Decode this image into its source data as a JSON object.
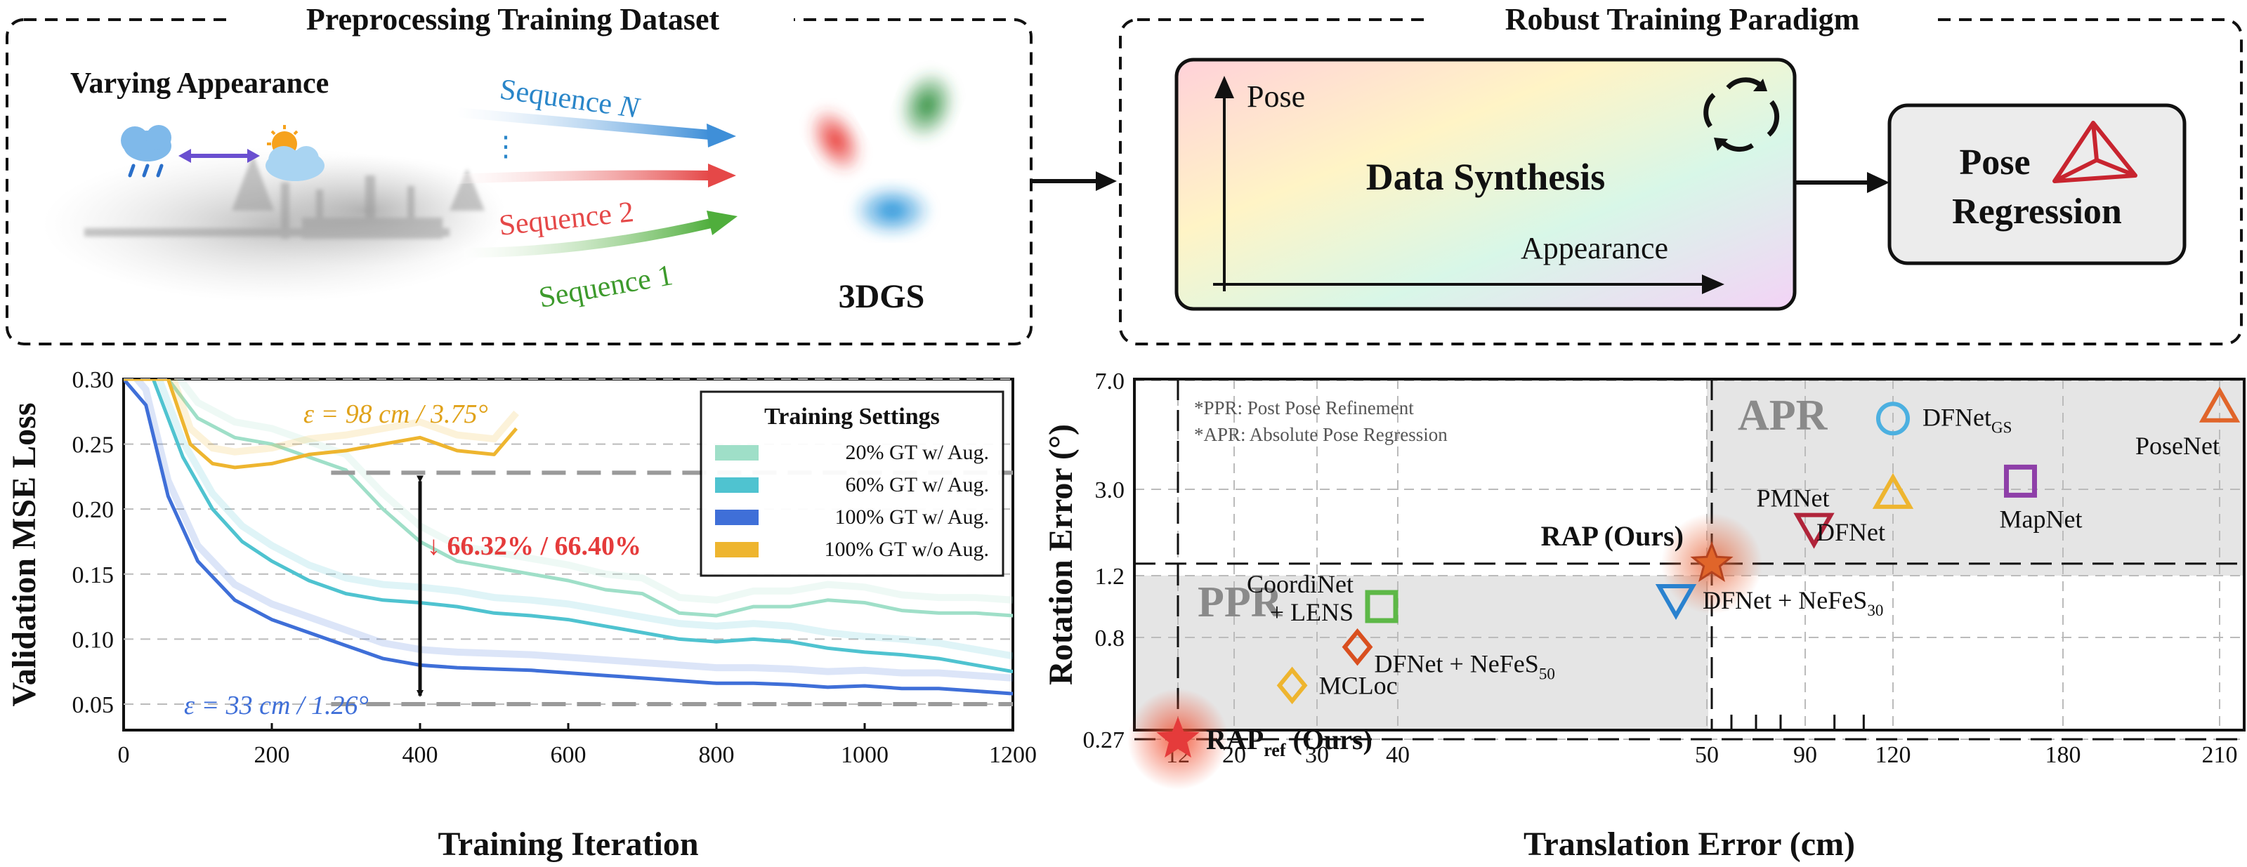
{
  "panels": {
    "preprocess": {
      "title": "Preprocessing Training Dataset",
      "varying": "Varying Appearance",
      "seqN_base": "Sequence ",
      "seqN_var": "N",
      "seq_dots": "⋮",
      "seq2": "Sequence 2",
      "seq1": "Sequence 1",
      "gs": "3DGS"
    },
    "robust": {
      "title": "Robust Training Paradigm",
      "synth": "Data Synthesis",
      "pose_axis": "Pose",
      "appearance_axis": "Appearance",
      "regression_l1": "Pose",
      "regression_l2": "Regression"
    }
  },
  "colors": {
    "light_teal": "#9fdfc8",
    "teal": "#4fc3d0",
    "blue": "#3f6fd8",
    "orange": "#eeb52f",
    "red": "#e53b3b",
    "green": "#5db847",
    "purple": "#8e3fa8"
  },
  "chart_data": [
    {
      "type": "line",
      "title": "",
      "xlabel": "Training Iteration",
      "ylabel": "Validation  MSE Loss",
      "xlim": [
        0,
        1200
      ],
      "ylim": [
        0.03,
        0.3
      ],
      "xticks": [
        "0",
        "200",
        "400",
        "600",
        "800",
        "1000",
        "1200"
      ],
      "yticks": [
        "0.05",
        "0.10",
        "0.15",
        "0.20",
        "0.25",
        "0.30"
      ],
      "legend_title": "Training Settings",
      "legend_position": "top-right",
      "series": [
        {
          "name": "20% GT  w/  Aug.",
          "color": "#9fdfc8",
          "x": [
            0,
            60,
            100,
            150,
            200,
            250,
            300,
            350,
            400,
            450,
            500,
            550,
            600,
            650,
            700,
            750,
            800,
            850,
            900,
            950,
            1000,
            1050,
            1100,
            1150,
            1200
          ],
          "y": [
            0.3,
            0.3,
            0.27,
            0.255,
            0.25,
            0.24,
            0.23,
            0.2,
            0.175,
            0.16,
            0.155,
            0.15,
            0.145,
            0.138,
            0.135,
            0.12,
            0.118,
            0.125,
            0.125,
            0.13,
            0.128,
            0.122,
            0.12,
            0.12,
            0.118
          ]
        },
        {
          "name": "60% GT  w/  Aug.",
          "color": "#4fc3d0",
          "x": [
            0,
            40,
            80,
            120,
            160,
            200,
            250,
            300,
            350,
            400,
            450,
            500,
            550,
            600,
            650,
            700,
            750,
            800,
            850,
            900,
            950,
            1000,
            1050,
            1100,
            1150,
            1200
          ],
          "y": [
            0.3,
            0.3,
            0.24,
            0.2,
            0.175,
            0.16,
            0.145,
            0.135,
            0.13,
            0.128,
            0.125,
            0.12,
            0.118,
            0.115,
            0.11,
            0.105,
            0.1,
            0.098,
            0.1,
            0.098,
            0.093,
            0.09,
            0.088,
            0.085,
            0.08,
            0.075
          ]
        },
        {
          "name": "100% GT  w/  Aug.",
          "color": "#3f6fd8",
          "x": [
            0,
            30,
            60,
            100,
            150,
            200,
            250,
            300,
            350,
            400,
            450,
            500,
            550,
            600,
            650,
            700,
            750,
            800,
            850,
            900,
            950,
            1000,
            1050,
            1100,
            1150,
            1200
          ],
          "y": [
            0.3,
            0.28,
            0.21,
            0.16,
            0.13,
            0.115,
            0.105,
            0.095,
            0.085,
            0.08,
            0.078,
            0.077,
            0.076,
            0.074,
            0.072,
            0.07,
            0.068,
            0.066,
            0.066,
            0.065,
            0.063,
            0.064,
            0.062,
            0.062,
            0.06,
            0.058
          ]
        },
        {
          "name": "100% GT w/o Aug.",
          "color": "#eeb52f",
          "x": [
            0,
            30,
            60,
            90,
            120,
            150,
            200,
            250,
            300,
            350,
            400,
            450,
            500,
            530
          ],
          "y": [
            0.3,
            0.3,
            0.3,
            0.25,
            0.235,
            0.232,
            0.235,
            0.242,
            0.245,
            0.25,
            0.255,
            0.245,
            0.242,
            0.262
          ]
        }
      ],
      "annotations": {
        "top": "ε = 98 cm / 3.75°",
        "bottom": "ε = 33 cm / 1.26°",
        "reduction": "↓ 66.32% / 66.40%",
        "upper_ref": 0.228,
        "lower_ref": 0.05
      }
    },
    {
      "type": "scatter",
      "xlabel": "Translation Error (cm)",
      "ylabel": "Rotation Error (°)",
      "xticks": [
        "12",
        "20",
        "30",
        "40",
        "50",
        "90",
        "120",
        "180",
        "210"
      ],
      "yticks": [
        "0.27",
        "0.8",
        "1.2",
        "3.0",
        "7.0"
      ],
      "notes": [
        "*PPR: Post Pose Refinement",
        "*APR: Absolute Pose Regression"
      ],
      "regions": {
        "ppr": "PPR",
        "apr": "APR"
      },
      "points": [
        {
          "name": "RAP",
          "sub": "ref",
          "suffix": " (Ours)",
          "x": 12,
          "y": 0.27,
          "marker": "star-filled",
          "color": "#e53b3b"
        },
        {
          "name": "RAP (Ours)",
          "sub": "",
          "suffix": "",
          "x": 52,
          "y": 1.45,
          "marker": "star-filled",
          "color": "#e0652a"
        },
        {
          "name": "MCLoc",
          "sub": "",
          "suffix": "",
          "x": 27,
          "y": 0.55,
          "marker": "diamond",
          "color": "#eeb52f"
        },
        {
          "name": "DFNet + NeFeS",
          "sub": "50",
          "suffix": "",
          "x": 35,
          "y": 0.75,
          "marker": "diamond",
          "color": "#d94f1f"
        },
        {
          "name": "CoordiNet\n+ LENS",
          "sub": "",
          "suffix": "",
          "x": 38,
          "y": 1.0,
          "marker": "square",
          "color": "#5db847"
        },
        {
          "name": "DFNet + NeFeS",
          "sub": "30",
          "suffix": "",
          "x": 49,
          "y": 1.05,
          "marker": "triangle-down",
          "color": "#2a82cf"
        },
        {
          "name": "DFNet",
          "sub": "GS",
          "suffix": "",
          "x": 120,
          "y": 5.6,
          "marker": "circle",
          "color": "#4cb0e0"
        },
        {
          "name": "DFNet",
          "sub": "",
          "suffix": "",
          "x": 120,
          "y": 2.9,
          "marker": "triangle-up",
          "color": "#eeb52f"
        },
        {
          "name": "PMNet",
          "sub": "",
          "suffix": "",
          "x": 93,
          "y": 2.2,
          "marker": "triangle-down",
          "color": "#b0243a"
        },
        {
          "name": "MapNet",
          "sub": "",
          "suffix": "",
          "x": 165,
          "y": 3.3,
          "marker": "square",
          "color": "#8e3fa8"
        },
        {
          "name": "PoseNet",
          "sub": "",
          "suffix": "",
          "x": 210,
          "y": 6.0,
          "marker": "triangle-up",
          "color": "#e0652a"
        }
      ]
    }
  ]
}
